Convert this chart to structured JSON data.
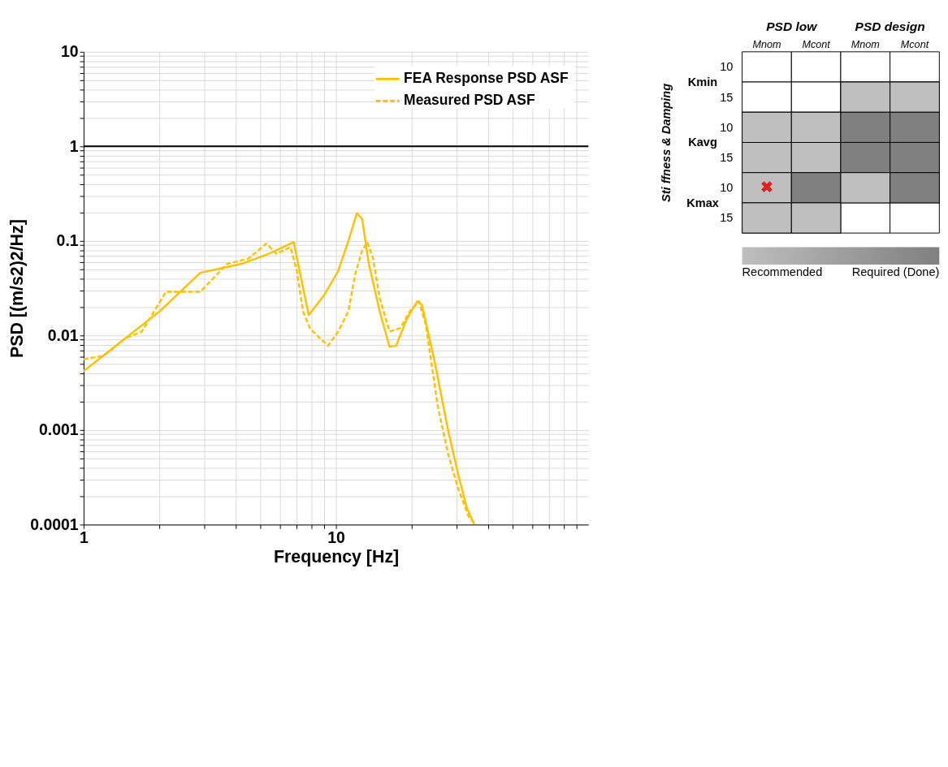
{
  "chart_data": [
    {
      "type": "line",
      "xlabel": "Frequency [Hz]",
      "ylabel": "PSD [(m/s2)2/Hz]",
      "xlim": [
        1,
        100
      ],
      "ylim": [
        0.0001,
        10
      ],
      "log": "xy",
      "grid": true,
      "legend": "top right",
      "xticks": [
        1,
        {
          "value": 2,
          "label": null
        },
        {
          "value": 3,
          "label": null
        },
        {
          "value": 4,
          "label": null
        },
        {
          "value": 5,
          "label": null
        },
        {
          "value": 6,
          "label": null
        },
        {
          "value": 7,
          "label": null
        },
        {
          "value": 8,
          "label": null
        },
        {
          "value": 9,
          "label": null
        },
        10,
        {
          "value": 20,
          "label": null
        },
        {
          "value": 30,
          "label": null
        },
        {
          "value": 40,
          "label": null
        },
        {
          "value": 50,
          "label": null
        },
        {
          "value": 60,
          "label": null
        },
        {
          "value": 70,
          "label": null
        },
        {
          "value": 80,
          "label": null
        },
        {
          "value": 90,
          "label": null
        }
      ],
      "yticks": [
        0.0001,
        {
          "value": 0.0002,
          "label": null
        },
        {
          "value": 0.0003,
          "label": null
        },
        {
          "value": 0.0004,
          "label": null
        },
        {
          "value": 0.0005,
          "label": null
        },
        {
          "value": 0.0006,
          "label": null
        },
        {
          "value": 0.0007,
          "label": null
        },
        {
          "value": 0.0008,
          "label": null
        },
        {
          "value": 0.0009,
          "label": null
        },
        0.001,
        {
          "value": 0.002,
          "label": null
        },
        {
          "value": 0.003,
          "label": null
        },
        {
          "value": 0.004,
          "label": null
        },
        {
          "value": 0.005,
          "label": null
        },
        {
          "value": 0.006,
          "label": null
        },
        {
          "value": 0.007,
          "label": null
        },
        {
          "value": 0.008,
          "label": null
        },
        {
          "value": 0.009,
          "label": null
        },
        0.01,
        {
          "value": 0.02,
          "label": null
        },
        {
          "value": 0.03,
          "label": null
        },
        {
          "value": 0.04,
          "label": null
        },
        {
          "value": 0.05,
          "label": null
        },
        {
          "value": 0.06,
          "label": null
        },
        {
          "value": 0.07,
          "label": null
        },
        {
          "value": 0.08,
          "label": null
        },
        {
          "value": 0.09,
          "label": null
        },
        0.1,
        {
          "value": 0.2,
          "label": null
        },
        {
          "value": 0.3,
          "label": null
        },
        {
          "value": 0.4,
          "label": null
        },
        {
          "value": 0.5,
          "label": null
        },
        {
          "value": 0.6,
          "label": null
        },
        {
          "value": 0.7,
          "label": null
        },
        {
          "value": 0.8,
          "label": null
        },
        {
          "value": 0.9,
          "label": null
        },
        1,
        {
          "value": 2,
          "label": null
        },
        {
          "value": 3,
          "label": null
        },
        {
          "value": 4,
          "label": null
        },
        {
          "value": 5,
          "label": null
        },
        {
          "value": 6,
          "label": null
        },
        {
          "value": 7,
          "label": null
        },
        {
          "value": 8,
          "label": null
        },
        {
          "value": 9,
          "label": null
        },
        10
      ],
      "ref_lines": [
        {
          "axis": "y",
          "value": 1,
          "color": "#000000"
        }
      ],
      "series": [
        {
          "name": "FEA Response PSD  ASF",
          "color": "#ffc000",
          "line_style": "solid",
          "x": [
            1,
            2,
            2.9,
            4.2,
            5.4,
            6.8,
            7.8,
            9,
            10.2,
            11.2,
            12.1,
            12.7,
            13.5,
            14.9,
            16.3,
            17.3,
            19.1,
            21,
            21.9,
            24.5,
            27.8,
            30.5,
            33,
            35.3
          ],
          "values": [
            0.0042,
            0.018,
            0.046,
            0.057,
            0.073,
            0.097,
            0.0164,
            0.027,
            0.048,
            0.1,
            0.197,
            0.17,
            0.057,
            0.018,
            0.0076,
            0.0078,
            0.015,
            0.023,
            0.021,
            0.0056,
            0.001,
            0.00034,
            0.00015,
            0.0001
          ]
        },
        {
          "name": "Measured PSD ASF",
          "color": "#ffc000",
          "line_style": "dashed",
          "x": [
            1,
            1.2,
            1.46,
            1.7,
            2.12,
            2.9,
            3.7,
            4.5,
            5.3,
            5.8,
            6.6,
            7,
            7.4,
            7.9,
            8.7,
            9.3,
            10.2,
            11.2,
            11.9,
            12.7,
            13.3,
            14,
            14.9,
            16.3,
            18,
            19.6,
            21.3,
            22.7,
            25.3,
            27.8,
            30.5,
            33.6,
            35.8
          ],
          "values": [
            0.0056,
            0.0061,
            0.0093,
            0.011,
            0.029,
            0.029,
            0.057,
            0.065,
            0.094,
            0.073,
            0.086,
            0.048,
            0.018,
            0.0118,
            0.0092,
            0.0078,
            0.011,
            0.018,
            0.044,
            0.079,
            0.097,
            0.067,
            0.025,
            0.011,
            0.012,
            0.018,
            0.023,
            0.013,
            0.0018,
            0.00056,
            0.00024,
            0.00012,
            0.0001
          ]
        }
      ]
    },
    {
      "type": "heatmap",
      "ylabel": "Sti ffness & Damping",
      "clim": [
        1,
        2
      ],
      "cticks": [
        {
          "value": 1,
          "label": "Recommended"
        },
        {
          "value": 2,
          "label": "Required (Done)"
        }
      ],
      "categories": [
        "Mnom",
        "Mcont",
        "Mnom",
        "Mcont"
      ],
      "y_categories": [
        "10",
        "15",
        "10",
        "15",
        "10",
        "15"
      ],
      "annotations": [
        "PSD low",
        "PSD design",
        "Kmin",
        "Kavg",
        "Kmax"
      ],
      "colors": [
        "#bfbfbf",
        "#808080"
      ],
      "cells": [
        [
          null,
          null,
          null,
          null
        ],
        [
          null,
          null,
          1,
          1
        ],
        [
          1,
          1,
          2,
          2
        ],
        [
          1,
          1,
          2,
          2
        ],
        [
          1,
          2,
          1,
          2
        ],
        [
          1,
          1,
          null,
          null
        ]
      ],
      "cell_labels": [
        [
          null,
          null,
          null,
          null
        ],
        [
          null,
          null,
          null,
          null
        ],
        [
          null,
          null,
          null,
          null
        ],
        [
          null,
          null,
          null,
          null
        ],
        [
          "✖",
          null,
          null,
          null
        ],
        [
          null,
          null,
          null,
          null
        ]
      ]
    }
  ]
}
